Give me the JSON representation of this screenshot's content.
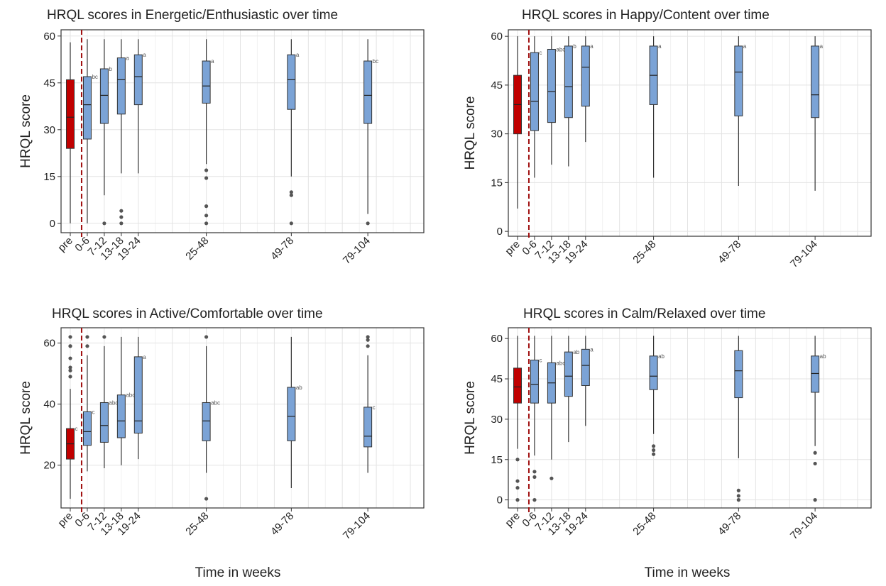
{
  "figure": {
    "xlabel": "Time in weeks"
  },
  "colors": {
    "baseline_fill": "#c00000",
    "followup_fill": "#7ba3d6",
    "divider": "#a01010"
  },
  "chart_data": [
    {
      "type": "box",
      "title": "HRQL scores in Energetic/Enthusiastic over time",
      "ylabel": "HRQL score",
      "ylim": [
        -3,
        62
      ],
      "yticks": [
        0,
        15,
        30,
        45,
        60
      ],
      "xlim": [
        0,
        120
      ],
      "divider_x": 4,
      "categories": [
        {
          "label": "pre",
          "x": 0,
          "stats": [
            0,
            24,
            34,
            46,
            58
          ],
          "outliers": [],
          "letter": ""
        },
        {
          "label": "0-6",
          "x": 6,
          "stats": [
            0,
            27,
            38,
            47,
            59
          ],
          "outliers": [],
          "letter": "bc"
        },
        {
          "label": "7-12",
          "x": 12,
          "stats": [
            9,
            32,
            41,
            49.5,
            59
          ],
          "outliers": [
            0
          ],
          "letter": "b"
        },
        {
          "label": "13-18",
          "x": 18,
          "stats": [
            16,
            35,
            46,
            53,
            59
          ],
          "outliers": [
            0,
            2,
            4
          ],
          "letter": "a"
        },
        {
          "label": "19-24",
          "x": 24,
          "stats": [
            16,
            38,
            47,
            54,
            59
          ],
          "outliers": [],
          "letter": "a"
        },
        {
          "label": "25-48",
          "x": 48,
          "stats": [
            19,
            38.5,
            44,
            52,
            59
          ],
          "outliers": [
            0,
            2.5,
            5.5,
            14.5,
            17
          ],
          "letter": "a"
        },
        {
          "label": "49-78",
          "x": 78,
          "stats": [
            15,
            36.5,
            46,
            54,
            59
          ],
          "outliers": [
            0,
            9,
            10
          ],
          "letter": "a"
        },
        {
          "label": "79-104",
          "x": 105,
          "stats": [
            3,
            32,
            41,
            52,
            59
          ],
          "outliers": [
            0
          ],
          "letter": "bc"
        }
      ]
    },
    {
      "type": "box",
      "title": "HRQL scores in Happy/Content over time",
      "ylabel": "HRQL score",
      "ylim": [
        -1.5,
        62
      ],
      "yticks": [
        0,
        15,
        30,
        45,
        60
      ],
      "xlim": [
        0,
        120
      ],
      "divider_x": 4,
      "categories": [
        {
          "label": "pre",
          "x": 0,
          "stats": [
            7,
            30,
            39,
            48,
            60
          ],
          "outliers": [],
          "letter": ""
        },
        {
          "label": "0-6",
          "x": 6,
          "stats": [
            16.5,
            31,
            40,
            55,
            60
          ],
          "outliers": [],
          "letter": "c"
        },
        {
          "label": "7-12",
          "x": 12,
          "stats": [
            20.5,
            33.5,
            43,
            56,
            60
          ],
          "outliers": [],
          "letter": "abc"
        },
        {
          "label": "13-18",
          "x": 18,
          "stats": [
            20,
            35,
            44.5,
            57,
            60
          ],
          "outliers": [],
          "letter": "b"
        },
        {
          "label": "19-24",
          "x": 24,
          "stats": [
            27.5,
            38.5,
            50.5,
            57,
            60
          ],
          "outliers": [],
          "letter": "a"
        },
        {
          "label": "25-48",
          "x": 48,
          "stats": [
            16.5,
            39,
            48,
            57,
            60
          ],
          "outliers": [],
          "letter": "a"
        },
        {
          "label": "49-78",
          "x": 78,
          "stats": [
            14,
            35.5,
            49,
            57,
            60
          ],
          "outliers": [],
          "letter": "a"
        },
        {
          "label": "79-104",
          "x": 105,
          "stats": [
            12.5,
            35,
            42,
            57,
            60
          ],
          "outliers": [],
          "letter": "a"
        }
      ]
    },
    {
      "type": "box",
      "title": "HRQL scores in Active/Comfortable over time",
      "ylabel": "HRQL score",
      "ylim": [
        6,
        65
      ],
      "yticks": [
        20,
        40,
        60
      ],
      "xlim": [
        0,
        120
      ],
      "divider_x": 4,
      "categories": [
        {
          "label": "pre",
          "x": 0,
          "stats": [
            9,
            22,
            27,
            32,
            45
          ],
          "outliers": [
            49,
            51,
            52,
            55,
            59,
            59,
            62
          ],
          "letter": "c"
        },
        {
          "label": "0-6",
          "x": 6,
          "stats": [
            18,
            26.5,
            31,
            37.5,
            56
          ],
          "outliers": [
            59,
            62
          ],
          "letter": "c"
        },
        {
          "label": "7-12",
          "x": 12,
          "stats": [
            19,
            27.5,
            33,
            40.5,
            59
          ],
          "outliers": [
            62
          ],
          "letter": "abc"
        },
        {
          "label": "13-18",
          "x": 18,
          "stats": [
            20,
            29,
            34.5,
            43,
            62
          ],
          "outliers": [],
          "letter": "abc"
        },
        {
          "label": "19-24",
          "x": 24,
          "stats": [
            22,
            30.5,
            34.5,
            55.5,
            62
          ],
          "outliers": [],
          "letter": "a"
        },
        {
          "label": "25-48",
          "x": 48,
          "stats": [
            17.5,
            28,
            34.5,
            40.5,
            59
          ],
          "outliers": [
            9,
            62
          ],
          "letter": "abc"
        },
        {
          "label": "49-78",
          "x": 78,
          "stats": [
            12.5,
            28,
            36,
            45.5,
            62
          ],
          "outliers": [],
          "letter": "ab"
        },
        {
          "label": "79-104",
          "x": 105,
          "stats": [
            17.5,
            26,
            29.5,
            39,
            56
          ],
          "outliers": [
            59,
            61,
            62
          ],
          "letter": "c"
        }
      ]
    },
    {
      "type": "box",
      "title": "HRQL scores in Calm/Relaxed over time",
      "ylabel": "HRQL score",
      "ylim": [
        -3,
        64
      ],
      "yticks": [
        0,
        15,
        30,
        45,
        60
      ],
      "xlim": [
        0,
        120
      ],
      "divider_x": 4,
      "categories": [
        {
          "label": "pre",
          "x": 0,
          "stats": [
            19,
            36,
            42,
            49,
            61
          ],
          "outliers": [
            0,
            4.5,
            7,
            15
          ],
          "letter": ""
        },
        {
          "label": "0-6",
          "x": 6,
          "stats": [
            16.5,
            36,
            43,
            52,
            61
          ],
          "outliers": [
            0,
            8.5,
            10.5
          ],
          "letter": "c"
        },
        {
          "label": "7-12",
          "x": 12,
          "stats": [
            15,
            36,
            43.5,
            51,
            61
          ],
          "outliers": [
            8
          ],
          "letter": "abc"
        },
        {
          "label": "13-18",
          "x": 18,
          "stats": [
            21.5,
            38.5,
            46,
            55,
            61
          ],
          "outliers": [],
          "letter": "ab"
        },
        {
          "label": "19-24",
          "x": 24,
          "stats": [
            27.5,
            42.5,
            50,
            56,
            61
          ],
          "outliers": [],
          "letter": "a"
        },
        {
          "label": "25-48",
          "x": 48,
          "stats": [
            24.5,
            41,
            46,
            53.5,
            61
          ],
          "outliers": [
            17,
            18.5,
            20
          ],
          "letter": "ab"
        },
        {
          "label": "49-78",
          "x": 78,
          "stats": [
            15.5,
            38,
            48,
            55.5,
            61
          ],
          "outliers": [
            0,
            1.5,
            3.5
          ],
          "letter": ""
        },
        {
          "label": "79-104",
          "x": 105,
          "stats": [
            20,
            40,
            47,
            53.5,
            61
          ],
          "outliers": [
            0,
            13.5,
            17.5
          ],
          "letter": "ab"
        }
      ]
    }
  ]
}
